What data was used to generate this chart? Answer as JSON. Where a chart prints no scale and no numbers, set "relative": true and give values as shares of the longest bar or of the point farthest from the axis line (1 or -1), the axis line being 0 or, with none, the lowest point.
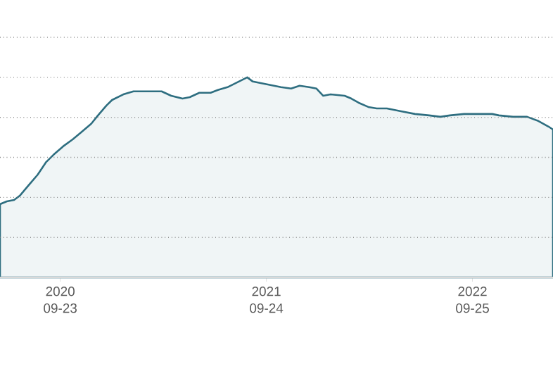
{
  "chart_data": {
    "type": "area",
    "relative": true,
    "grid": "y",
    "color": "#2e6e80",
    "x": [
      "2020-06-08",
      "2020-06-20",
      "2020-07-03",
      "2020-07-13",
      "2020-07-28",
      "2020-08-14",
      "2020-08-29",
      "2020-09-11",
      "2020-09-28",
      "2020-10-15",
      "2020-10-30",
      "2020-11-17",
      "2020-11-29",
      "2020-12-14",
      "2020-12-24",
      "2021-01-13",
      "2021-01-31",
      "2021-02-25",
      "2021-03-22",
      "2021-04-08",
      "2021-04-28",
      "2021-05-11",
      "2021-05-28",
      "2021-06-17",
      "2021-06-30",
      "2021-07-17",
      "2021-08-06",
      "2021-08-21",
      "2021-08-31",
      "2021-09-25",
      "2021-10-20",
      "2021-11-07",
      "2021-11-22",
      "2021-12-09",
      "2021-12-22",
      "2022-01-03",
      "2022-01-16",
      "2022-02-10",
      "2022-02-22",
      "2022-03-07",
      "2022-03-24",
      "2022-04-08",
      "2022-04-26",
      "2022-05-21",
      "2022-06-15",
      "2022-07-10",
      "2022-07-30",
      "2022-08-16",
      "2022-09-10",
      "2022-10-05",
      "2022-10-30",
      "2022-11-11",
      "2022-12-06",
      "2022-12-31",
      "2023-01-20",
      "2023-02-07",
      "2023-02-15"
    ],
    "values": [
      0.366,
      0.38,
      0.387,
      0.408,
      0.458,
      0.514,
      0.577,
      0.613,
      0.655,
      0.69,
      0.725,
      0.768,
      0.81,
      0.859,
      0.887,
      0.915,
      0.93,
      0.93,
      0.93,
      0.908,
      0.894,
      0.901,
      0.923,
      0.923,
      0.937,
      0.951,
      0.979,
      1.0,
      0.979,
      0.965,
      0.951,
      0.944,
      0.958,
      0.951,
      0.944,
      0.908,
      0.915,
      0.908,
      0.894,
      0.873,
      0.852,
      0.845,
      0.845,
      0.831,
      0.817,
      0.81,
      0.803,
      0.81,
      0.817,
      0.817,
      0.817,
      0.81,
      0.803,
      0.803,
      0.782,
      0.754,
      0.739
    ],
    "xlim": [
      "2020-06-08",
      "2023-02-15"
    ],
    "xticks": [
      {
        "value": "2020-09-23",
        "label": "2020 09-23"
      },
      {
        "value": "2021-09-24",
        "label": "2021 09-24"
      },
      {
        "value": "2022-09-25",
        "label": "2022 09-25"
      }
    ]
  }
}
